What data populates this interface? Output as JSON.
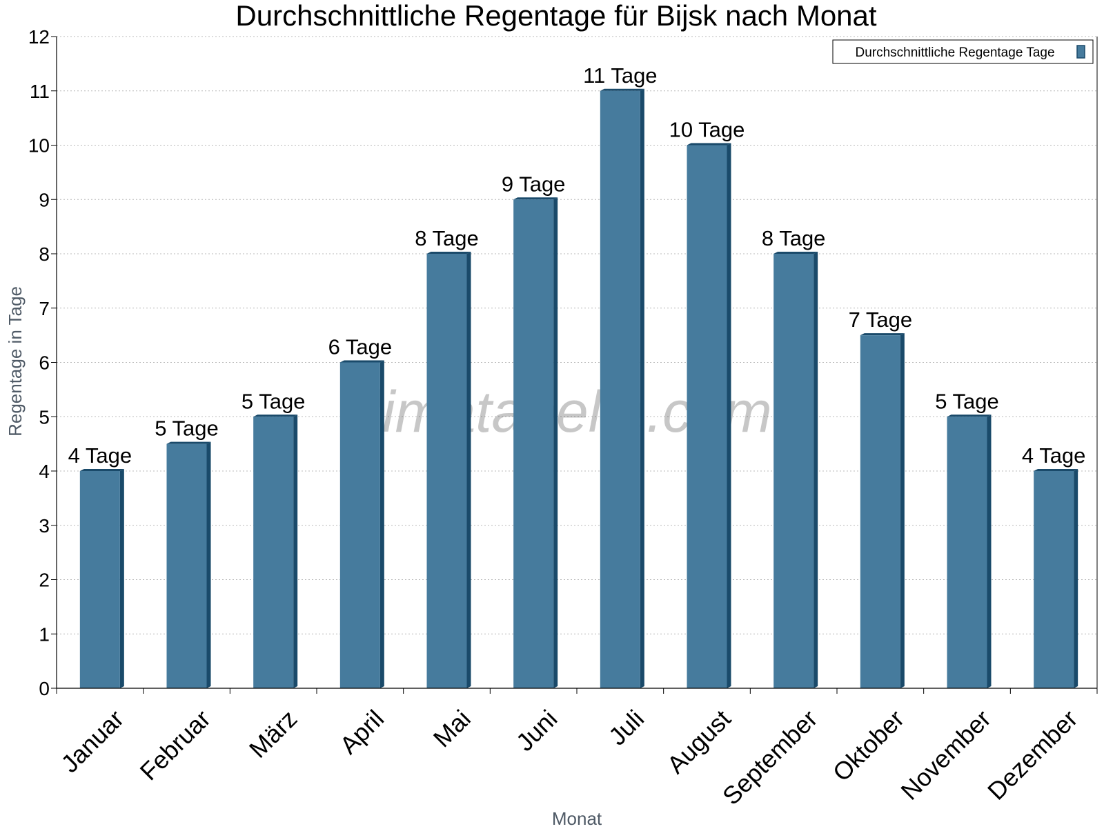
{
  "chart_data": {
    "type": "bar",
    "title": "Durchschnittliche Regentage für Bijsk nach Monat",
    "xlabel": "Monat",
    "ylabel": "Regentage in Tage",
    "ylim": [
      0,
      12
    ],
    "yticks": [
      0,
      1,
      2,
      3,
      4,
      5,
      6,
      7,
      8,
      9,
      10,
      11,
      12
    ],
    "grid": true,
    "legend_position": "top-right",
    "categories": [
      "Januar",
      "Februar",
      "März",
      "April",
      "Mai",
      "Juni",
      "Juli",
      "August",
      "September",
      "Oktober",
      "November",
      "Dezember"
    ],
    "series": [
      {
        "name": "Durchschnittliche Regentage Tage",
        "color": "#467b9d",
        "values": [
          4,
          4.5,
          5,
          6,
          8,
          9,
          11,
          10,
          8,
          6.5,
          5,
          4
        ],
        "data_labels": [
          "4 Tage",
          "5 Tage",
          "5 Tage",
          "6 Tage",
          "8 Tage",
          "9 Tage",
          "11 Tage",
          "10 Tage",
          "8 Tage",
          "7 Tage",
          "5 Tage",
          "4 Tage"
        ]
      }
    ],
    "watermark": "klimatabelle.com"
  }
}
